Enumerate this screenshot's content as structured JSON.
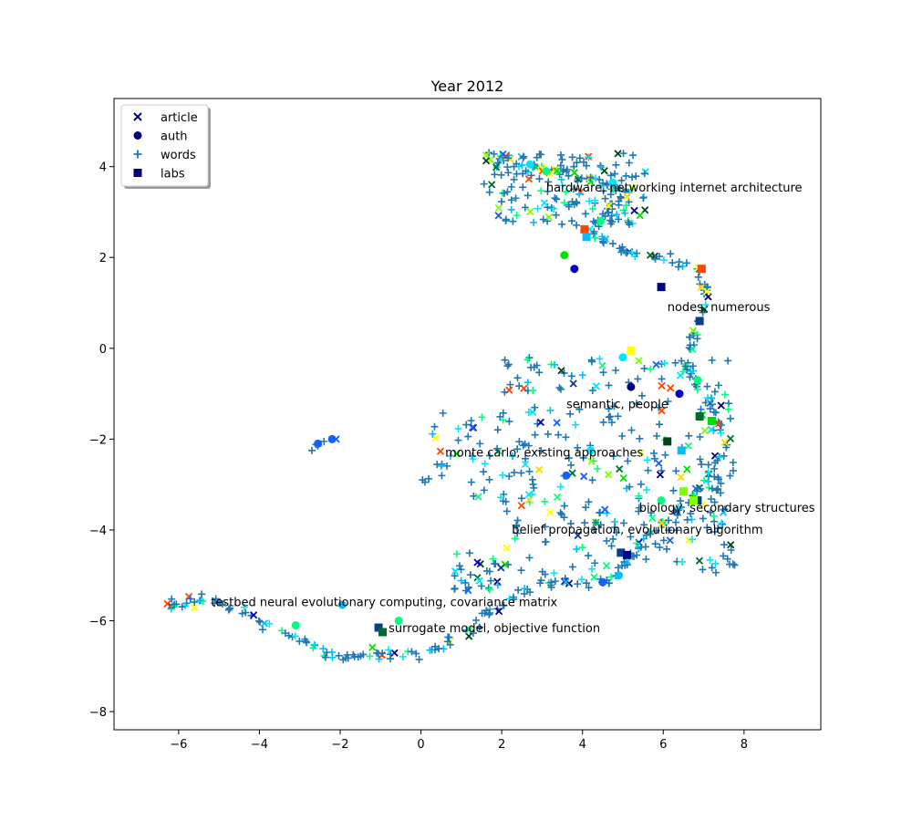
{
  "chart_data": {
    "type": "scatter",
    "title": "Year 2012",
    "xlabel": "",
    "ylabel": "",
    "xlim": [
      -7.6,
      9.9
    ],
    "ylim": [
      -8.4,
      5.5
    ],
    "xticks": [
      -6,
      -4,
      -2,
      0,
      2,
      4,
      6,
      8
    ],
    "yticks": [
      -8,
      -6,
      -4,
      -2,
      0,
      2,
      4
    ],
    "grid": false,
    "legend_position": "top-left",
    "legend": [
      {
        "label": "article",
        "marker": "x",
        "color": "#000080"
      },
      {
        "label": "auth",
        "marker": "circle",
        "color": "#000080"
      },
      {
        "label": "words",
        "marker": "plus",
        "color": "#1f77b4"
      },
      {
        "label": "labs",
        "marker": "square",
        "color": "#000080"
      }
    ],
    "colors": {
      "words": "#1f77b4",
      "palette": [
        "#000080",
        "#0000cd",
        "#1560ff",
        "#00bfff",
        "#00e5ff",
        "#00ff7f",
        "#00e000",
        "#7fff00",
        "#ffff00",
        "#ffd700",
        "#00441b",
        "#006d2c",
        "#0a3d91",
        "#ff4500"
      ]
    },
    "annotations": [
      {
        "text": "hardware, networking internet architecture",
        "x": 3.1,
        "y": 3.45
      },
      {
        "text": "nodes, numerous",
        "x": 6.1,
        "y": 0.82
      },
      {
        "text": "semantic, people",
        "x": 3.6,
        "y": -1.32
      },
      {
        "text": "monte carlo, existing approaches",
        "x": 0.6,
        "y": -2.38
      },
      {
        "text": "biology, secondary structures",
        "x": 5.4,
        "y": -3.6
      },
      {
        "text": "belief propagation, evolutionary algorithm",
        "x": 2.25,
        "y": -4.08
      },
      {
        "text": "testbed neural evolutionary computing, covariance matrix",
        "x": -5.2,
        "y": -5.68
      },
      {
        "text": "surrogate model, objective function",
        "x": -0.8,
        "y": -6.25
      }
    ],
    "path": [
      [
        1.6,
        4.3
      ],
      [
        2.3,
        4.0
      ],
      [
        3.0,
        3.9
      ],
      [
        3.8,
        3.75
      ],
      [
        4.6,
        3.6
      ],
      [
        5.1,
        3.45
      ],
      [
        4.6,
        3.0
      ],
      [
        4.2,
        2.6
      ],
      [
        4.6,
        2.3
      ],
      [
        5.2,
        2.1
      ],
      [
        6.0,
        2.0
      ],
      [
        6.8,
        1.8
      ],
      [
        7.1,
        1.3
      ],
      [
        6.9,
        0.7
      ],
      [
        6.7,
        0.2
      ],
      [
        6.6,
        -0.3
      ],
      [
        6.9,
        -0.9
      ],
      [
        7.3,
        -1.5
      ],
      [
        7.6,
        -2.1
      ],
      [
        7.2,
        -2.7
      ],
      [
        6.8,
        -3.2
      ],
      [
        6.2,
        -3.7
      ],
      [
        5.6,
        -4.1
      ],
      [
        5.2,
        -4.6
      ],
      [
        4.7,
        -5.1
      ],
      [
        4.0,
        -5.2
      ],
      [
        3.3,
        -5.1
      ],
      [
        2.5,
        -5.4
      ],
      [
        1.9,
        -5.7
      ],
      [
        1.3,
        -6.1
      ],
      [
        0.7,
        -6.5
      ],
      [
        0.0,
        -6.75
      ],
      [
        -0.8,
        -6.75
      ],
      [
        -1.4,
        -6.7
      ],
      [
        -1.9,
        -6.9
      ],
      [
        -2.5,
        -6.6
      ],
      [
        -3.2,
        -6.35
      ],
      [
        -4.0,
        -6.0
      ],
      [
        -4.8,
        -5.6
      ],
      [
        -5.4,
        -5.5
      ],
      [
        -5.9,
        -5.6
      ],
      [
        -6.2,
        -5.7
      ]
    ],
    "region_main": {
      "xrange": [
        0.0,
        7.8
      ],
      "yrange": [
        -5.0,
        -0.2
      ]
    },
    "region_top": {
      "xrange": [
        1.5,
        5.6
      ],
      "yrange": [
        2.7,
        4.3
      ]
    },
    "region_left_branch": {
      "xrange": [
        0.8,
        2.0
      ],
      "yrange": [
        -5.4,
        -4.5
      ]
    },
    "cluster_isolated": [
      [
        -2.1,
        -2.0
      ],
      [
        -2.4,
        -2.05
      ],
      [
        -2.6,
        -2.12
      ],
      [
        -2.7,
        -2.25
      ],
      [
        -2.55,
        -2.15
      ]
    ],
    "labs": [
      [
        4.05,
        2.62
      ],
      [
        4.1,
        2.45
      ],
      [
        5.95,
        1.35
      ],
      [
        6.9,
        0.6
      ],
      [
        6.95,
        1.75
      ],
      [
        5.2,
        -0.05
      ],
      [
        6.9,
        -1.5
      ],
      [
        7.2,
        -1.6
      ],
      [
        6.1,
        -2.05
      ],
      [
        6.45,
        -2.25
      ],
      [
        6.5,
        -3.15
      ],
      [
        6.85,
        -3.35
      ],
      [
        6.75,
        -3.35
      ],
      [
        4.95,
        -4.5
      ],
      [
        5.1,
        -4.55
      ],
      [
        -1.05,
        -6.15
      ],
      [
        -0.95,
        -6.25
      ]
    ],
    "auths": [
      [
        -2.2,
        -2.0
      ],
      [
        -2.55,
        -2.1
      ],
      [
        -3.1,
        -6.1
      ],
      [
        -1.95,
        -5.65
      ],
      [
        -0.55,
        -6.0
      ],
      [
        3.55,
        2.05
      ],
      [
        3.8,
        1.75
      ],
      [
        4.45,
        2.8
      ],
      [
        4.75,
        3.65
      ],
      [
        5.0,
        -0.2
      ],
      [
        5.2,
        -0.85
      ],
      [
        4.2,
        -2.25
      ],
      [
        3.6,
        -2.8
      ],
      [
        4.9,
        -5.0
      ],
      [
        4.5,
        -5.15
      ],
      [
        5.95,
        -3.35
      ],
      [
        6.4,
        -1.0
      ],
      [
        6.85,
        -0.7
      ],
      [
        2.7,
        4.05
      ],
      [
        3.1,
        3.9
      ]
    ]
  }
}
